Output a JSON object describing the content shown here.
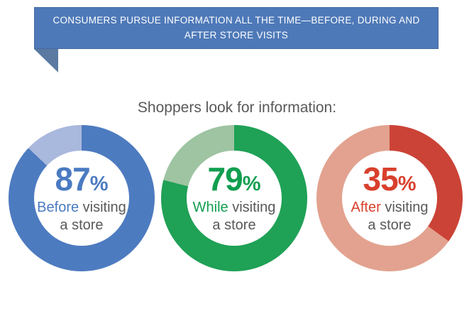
{
  "banner": {
    "text": "CONSUMERS PURSUE INFORMATION ALL THE TIME—BEFORE, DURING AND AFTER STORE VISITS",
    "bg_color": "#4e79b8",
    "tail_color": "#5a7aa2",
    "text_color": "#ffffff"
  },
  "heading": "Shoppers look for information:",
  "chart_data": {
    "type": "pie",
    "variant": "donut",
    "title": "Shoppers look for information:",
    "unit": "%",
    "legend_position": "inside",
    "series": [
      {
        "label": "Before visiting a store",
        "highlight": "Before",
        "label_rest": "visiting",
        "label_line2": "a store",
        "value": 87,
        "remainder": 13,
        "unit": "%",
        "color": "#4d7bc0",
        "remainder_color": "#a9b8dd",
        "accent_color": "#4a7ac1"
      },
      {
        "label": "While visiting a store",
        "highlight": "While",
        "label_rest": "visiting",
        "label_line2": "a store",
        "value": 79,
        "remainder": 21,
        "unit": "%",
        "color": "#1fa156",
        "remainder_color": "#9ec4a2",
        "accent_color": "#119e4f"
      },
      {
        "label": "After visiting a store",
        "highlight": "After",
        "label_rest": "visiting",
        "label_line2": "a store",
        "value": 35,
        "remainder": 65,
        "unit": "%",
        "color": "#cb4336",
        "remainder_color": "#e2a28f",
        "accent_color": "#d8402d"
      }
    ]
  }
}
